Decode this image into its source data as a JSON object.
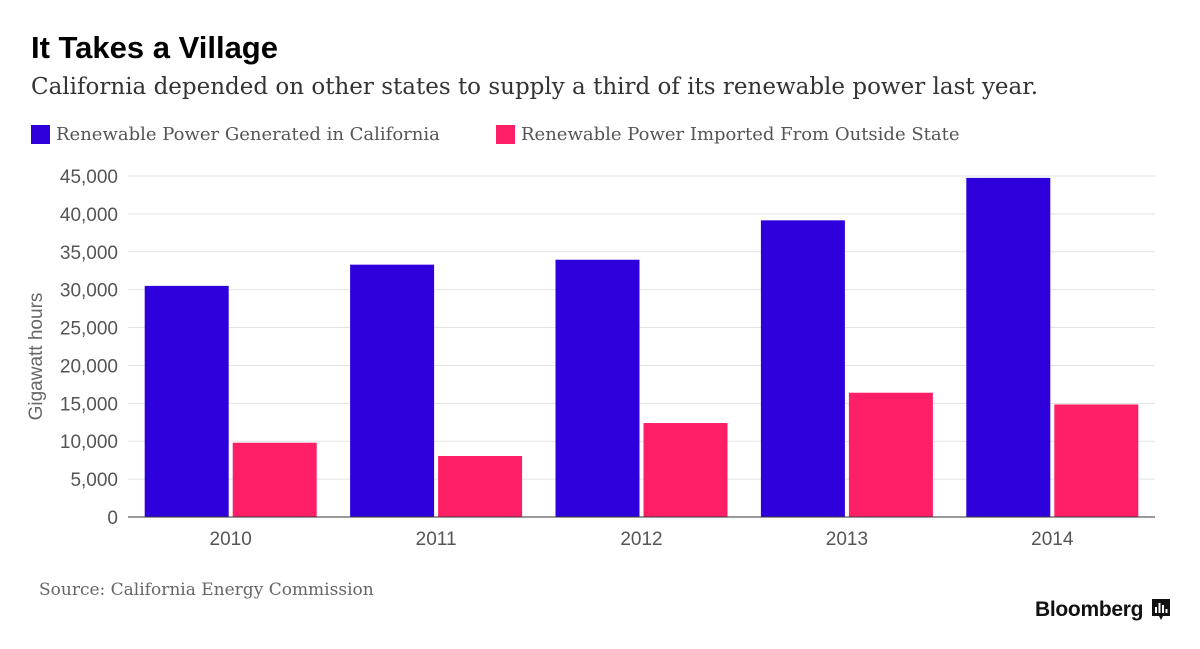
{
  "chart_data": {
    "type": "bar",
    "title": "It Takes a Village",
    "subtitle": "California depended on other states to supply a third of its renewable power last year.",
    "ylabel": "Gigawatt hours",
    "xlabel": "",
    "categories": [
      "2010",
      "2011",
      "2012",
      "2013",
      "2014"
    ],
    "series": [
      {
        "name": "Renewable Power Generated in California",
        "color": "#2e00dc",
        "values": [
          30500,
          33300,
          33950,
          39150,
          44750
        ]
      },
      {
        "name": "Renewable Power Imported From Outside State",
        "color": "#ff1f67",
        "values": [
          9800,
          8050,
          12400,
          16400,
          14850
        ]
      }
    ],
    "ylim": [
      0,
      45000
    ],
    "yticks": [
      0,
      5000,
      10000,
      15000,
      20000,
      25000,
      30000,
      35000,
      40000,
      45000
    ],
    "ytick_labels": [
      "0",
      "5,000",
      "10,000",
      "15,000",
      "20,000",
      "25,000",
      "30,000",
      "35,000",
      "40,000",
      "45,000"
    ],
    "grid": true,
    "legend_position": "top-left"
  },
  "footer": {
    "source": "Source: California Energy Commission",
    "brand": "Bloomberg",
    "brand_icon": "bloomberg-chart-icon"
  }
}
